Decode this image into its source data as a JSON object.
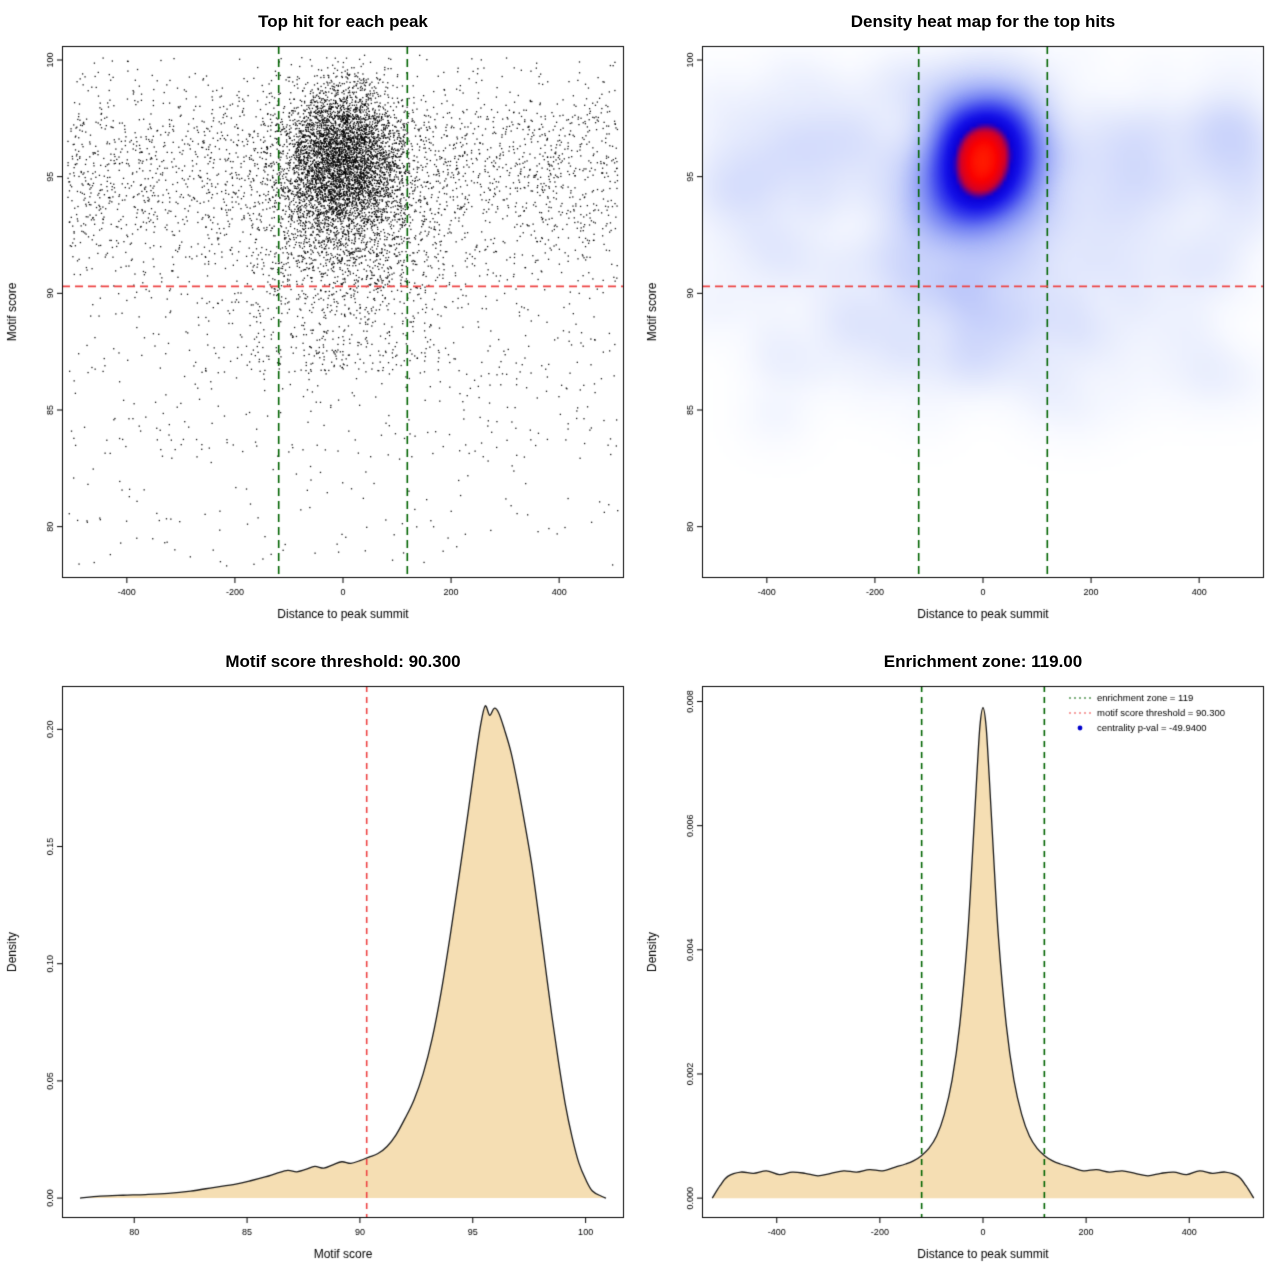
{
  "page": {
    "background": "#ffffff"
  },
  "chart_data": [
    {
      "type": "scatter",
      "title": "Top hit for each peak",
      "xlabel": "Distance to peak summit",
      "ylabel": "Motif score",
      "xlim": [
        -520,
        520
      ],
      "ylim": [
        77.8,
        100.6
      ],
      "xticks": [
        -400,
        -200,
        0,
        200,
        400
      ],
      "yticks": [
        80,
        85,
        90,
        95,
        100
      ],
      "xtick_labels": [
        "-400",
        "-200",
        "0",
        "200",
        "400"
      ],
      "ytick_labels": [
        "80",
        "85",
        "90",
        "95",
        "100"
      ],
      "point_color": "#000000",
      "seed": 42,
      "clusters": [
        {
          "n": 4200,
          "x": [
            "normal",
            0,
            55
          ],
          "y": [
            "normal",
            95.9,
            1.55
          ]
        },
        {
          "n": 1300,
          "x": [
            "normal",
            0,
            78
          ],
          "y": [
            "normal",
            93.2,
            1.9
          ]
        },
        {
          "n": 2600,
          "x": [
            "uniform",
            -510,
            510
          ],
          "y": [
            "normal",
            95.2,
            2.1
          ]
        },
        {
          "n": 500,
          "x": [
            "normal",
            0,
            115
          ],
          "y": [
            "uniform",
            86.5,
            91.8
          ]
        },
        {
          "n": 480,
          "x": [
            "uniform",
            -510,
            510
          ],
          "y": [
            "uniform",
            83,
            92.5
          ]
        },
        {
          "n": 130,
          "x": [
            "uniform",
            -510,
            510
          ],
          "y": [
            "uniform",
            78.3,
            84
          ]
        }
      ],
      "hlines": [
        {
          "y": 90.3,
          "color": "#ee4444",
          "dash": [
            8,
            5
          ]
        }
      ],
      "vlines": [
        {
          "x": -119,
          "color": "#006400",
          "dash": [
            8,
            5
          ]
        },
        {
          "x": 119,
          "color": "#006400",
          "dash": [
            8,
            5
          ]
        }
      ]
    },
    {
      "type": "heatmap",
      "title": "Density heat map for the top hits",
      "xlabel": "Distance to peak summit",
      "ylabel": "Motif score",
      "xlim": [
        -520,
        520
      ],
      "ylim": [
        77.8,
        100.6
      ],
      "xticks": [
        -400,
        -200,
        0,
        200,
        400
      ],
      "yticks": [
        80,
        85,
        90,
        95,
        100
      ],
      "xtick_labels": [
        "-400",
        "-200",
        "0",
        "200",
        "400"
      ],
      "ytick_labels": [
        "80",
        "85",
        "90",
        "95",
        "100"
      ],
      "seed": 777,
      "samples": [
        {
          "n": 430,
          "x": [
            "normal",
            0,
            50
          ],
          "y": [
            "normal",
            95.7,
            1.5
          ]
        },
        {
          "n": 240,
          "x": [
            "uniform",
            -510,
            510
          ],
          "y": [
            "normal",
            95.2,
            2.2
          ]
        },
        {
          "n": 90,
          "x": [
            "normal",
            0,
            130
          ],
          "y": [
            "uniform",
            86.5,
            92.5
          ]
        },
        {
          "n": 70,
          "x": [
            "uniform",
            -510,
            510
          ],
          "y": [
            "uniform",
            84.5,
            92.5
          ]
        }
      ],
      "kernel": {
        "sx": 40,
        "sy": 0.9
      },
      "color_stops": [
        [
          0.0,
          "#ffffff"
        ],
        [
          0.04,
          "#f7f9ff"
        ],
        [
          0.1,
          "#e7ecfd"
        ],
        [
          0.2,
          "#ccd5fb"
        ],
        [
          0.32,
          "#a4b1f8"
        ],
        [
          0.45,
          "#7280f3"
        ],
        [
          0.58,
          "#3c43ee"
        ],
        [
          0.7,
          "#1512e8"
        ],
        [
          0.8,
          "#0b00d8"
        ],
        [
          0.88,
          "#d1002a"
        ],
        [
          0.95,
          "#fb0000"
        ],
        [
          1.0,
          "#ff1a00"
        ]
      ],
      "hlines": [
        {
          "y": 90.3,
          "color": "#ee4444",
          "dash": [
            8,
            5
          ]
        }
      ],
      "vlines": [
        {
          "x": -119,
          "color": "#006400",
          "dash": [
            8,
            5
          ]
        },
        {
          "x": 119,
          "color": "#006400",
          "dash": [
            8,
            5
          ]
        }
      ]
    },
    {
      "type": "density",
      "title": "Motif score threshold: 90.300",
      "xlabel": "Motif score",
      "ylabel": "Density",
      "xlim": [
        76.8,
        101.7
      ],
      "ylim": [
        -0.0085,
        0.2185
      ],
      "xticks": [
        80,
        85,
        90,
        95,
        100
      ],
      "yticks": [
        0,
        0.05,
        0.1,
        0.15,
        0.2
      ],
      "xtick_labels": [
        "80",
        "85",
        "90",
        "95",
        "100"
      ],
      "ytick_labels": [
        "0.00",
        "0.05",
        "0.10",
        "0.15",
        "0.20"
      ],
      "fill_color": "#f5deb3",
      "line_color": "#1a1a1a",
      "curve": [
        [
          77.6,
          0.0
        ],
        [
          78.5,
          0.0008
        ],
        [
          79.5,
          0.0012
        ],
        [
          80.5,
          0.0015
        ],
        [
          81.5,
          0.002
        ],
        [
          82.5,
          0.003
        ],
        [
          83.5,
          0.0045
        ],
        [
          84.5,
          0.006
        ],
        [
          85.2,
          0.0075
        ],
        [
          85.8,
          0.009
        ],
        [
          86.3,
          0.0105
        ],
        [
          86.8,
          0.0118
        ],
        [
          87.2,
          0.0112
        ],
        [
          87.6,
          0.0122
        ],
        [
          88.0,
          0.0135
        ],
        [
          88.4,
          0.0128
        ],
        [
          88.8,
          0.0142
        ],
        [
          89.2,
          0.0155
        ],
        [
          89.6,
          0.0148
        ],
        [
          90.0,
          0.016
        ],
        [
          90.4,
          0.0175
        ],
        [
          90.8,
          0.019
        ],
        [
          91.2,
          0.022
        ],
        [
          91.6,
          0.027
        ],
        [
          92.0,
          0.034
        ],
        [
          92.4,
          0.042
        ],
        [
          92.8,
          0.053
        ],
        [
          93.2,
          0.068
        ],
        [
          93.6,
          0.088
        ],
        [
          94.0,
          0.112
        ],
        [
          94.4,
          0.138
        ],
        [
          94.8,
          0.165
        ],
        [
          95.1,
          0.186
        ],
        [
          95.35,
          0.202
        ],
        [
          95.55,
          0.21
        ],
        [
          95.75,
          0.206
        ],
        [
          95.95,
          0.209
        ],
        [
          96.15,
          0.207
        ],
        [
          96.4,
          0.2
        ],
        [
          96.7,
          0.19
        ],
        [
          97.0,
          0.176
        ],
        [
          97.3,
          0.16
        ],
        [
          97.6,
          0.143
        ],
        [
          97.9,
          0.122
        ],
        [
          98.2,
          0.1
        ],
        [
          98.5,
          0.078
        ],
        [
          98.8,
          0.058
        ],
        [
          99.1,
          0.04
        ],
        [
          99.4,
          0.026
        ],
        [
          99.7,
          0.015
        ],
        [
          100.0,
          0.008
        ],
        [
          100.3,
          0.003
        ],
        [
          100.7,
          0.0008
        ],
        [
          100.9,
          0.0
        ]
      ],
      "vlines": [
        {
          "x": 90.3,
          "color": "#ee4444",
          "dash": [
            6,
            5
          ]
        }
      ]
    },
    {
      "type": "density",
      "title": "Enrichment zone: 119.00",
      "xlabel": "Distance to peak summit",
      "ylabel": "Density",
      "xlim": [
        -545,
        545
      ],
      "ylim": [
        -0.00032,
        0.00825
      ],
      "xticks": [
        -400,
        -200,
        0,
        200,
        400
      ],
      "yticks": [
        0,
        0.002,
        0.004,
        0.006,
        0.008
      ],
      "xtick_labels": [
        "-400",
        "-200",
        "0",
        "200",
        "400"
      ],
      "ytick_labels": [
        "0.000",
        "0.002",
        "0.004",
        "0.006",
        "0.008"
      ],
      "fill_color": "#f5deb3",
      "line_color": "#1a1a1a",
      "curve": [
        [
          -525,
          0.0
        ],
        [
          -510,
          0.0002
        ],
        [
          -495,
          0.00035
        ],
        [
          -470,
          0.00042
        ],
        [
          -445,
          0.0004
        ],
        [
          -420,
          0.00044
        ],
        [
          -395,
          0.00038
        ],
        [
          -370,
          0.00042
        ],
        [
          -345,
          0.0004
        ],
        [
          -320,
          0.00036
        ],
        [
          -295,
          0.0004
        ],
        [
          -270,
          0.00044
        ],
        [
          -245,
          0.00042
        ],
        [
          -220,
          0.00046
        ],
        [
          -195,
          0.00044
        ],
        [
          -170,
          0.0005
        ],
        [
          -150,
          0.00055
        ],
        [
          -135,
          0.0006
        ],
        [
          -120,
          0.00068
        ],
        [
          -105,
          0.0008
        ],
        [
          -90,
          0.001
        ],
        [
          -75,
          0.00135
        ],
        [
          -60,
          0.0019
        ],
        [
          -45,
          0.0028
        ],
        [
          -30,
          0.0042
        ],
        [
          -20,
          0.0056
        ],
        [
          -12,
          0.0068
        ],
        [
          -6,
          0.0076
        ],
        [
          0,
          0.0079
        ],
        [
          6,
          0.0076
        ],
        [
          12,
          0.0068
        ],
        [
          20,
          0.0056
        ],
        [
          30,
          0.0042
        ],
        [
          45,
          0.0028
        ],
        [
          60,
          0.0019
        ],
        [
          75,
          0.00135
        ],
        [
          90,
          0.001
        ],
        [
          105,
          0.0008
        ],
        [
          120,
          0.00068
        ],
        [
          135,
          0.0006
        ],
        [
          150,
          0.00055
        ],
        [
          170,
          0.0005
        ],
        [
          195,
          0.00044
        ],
        [
          220,
          0.00046
        ],
        [
          245,
          0.00042
        ],
        [
          270,
          0.00044
        ],
        [
          295,
          0.0004
        ],
        [
          320,
          0.00036
        ],
        [
          345,
          0.0004
        ],
        [
          370,
          0.00042
        ],
        [
          395,
          0.00038
        ],
        [
          420,
          0.00044
        ],
        [
          445,
          0.0004
        ],
        [
          470,
          0.00042
        ],
        [
          495,
          0.00035
        ],
        [
          510,
          0.0002
        ],
        [
          525,
          0.0
        ]
      ],
      "vlines": [
        {
          "x": -119,
          "color": "#006400",
          "dash": [
            6,
            5
          ]
        },
        {
          "x": 119,
          "color": "#006400",
          "dash": [
            6,
            5
          ]
        }
      ],
      "legend": {
        "entries": [
          {
            "marker": "dotted-line",
            "color": "#006400",
            "label": "enrichment zone = 119"
          },
          {
            "marker": "dotted-line",
            "color": "#ee4444",
            "label": "motif score threshold = 90.300"
          },
          {
            "marker": "point",
            "color": "#0000cd",
            "label": "centrality p-val = -49.9400"
          }
        ]
      }
    }
  ]
}
